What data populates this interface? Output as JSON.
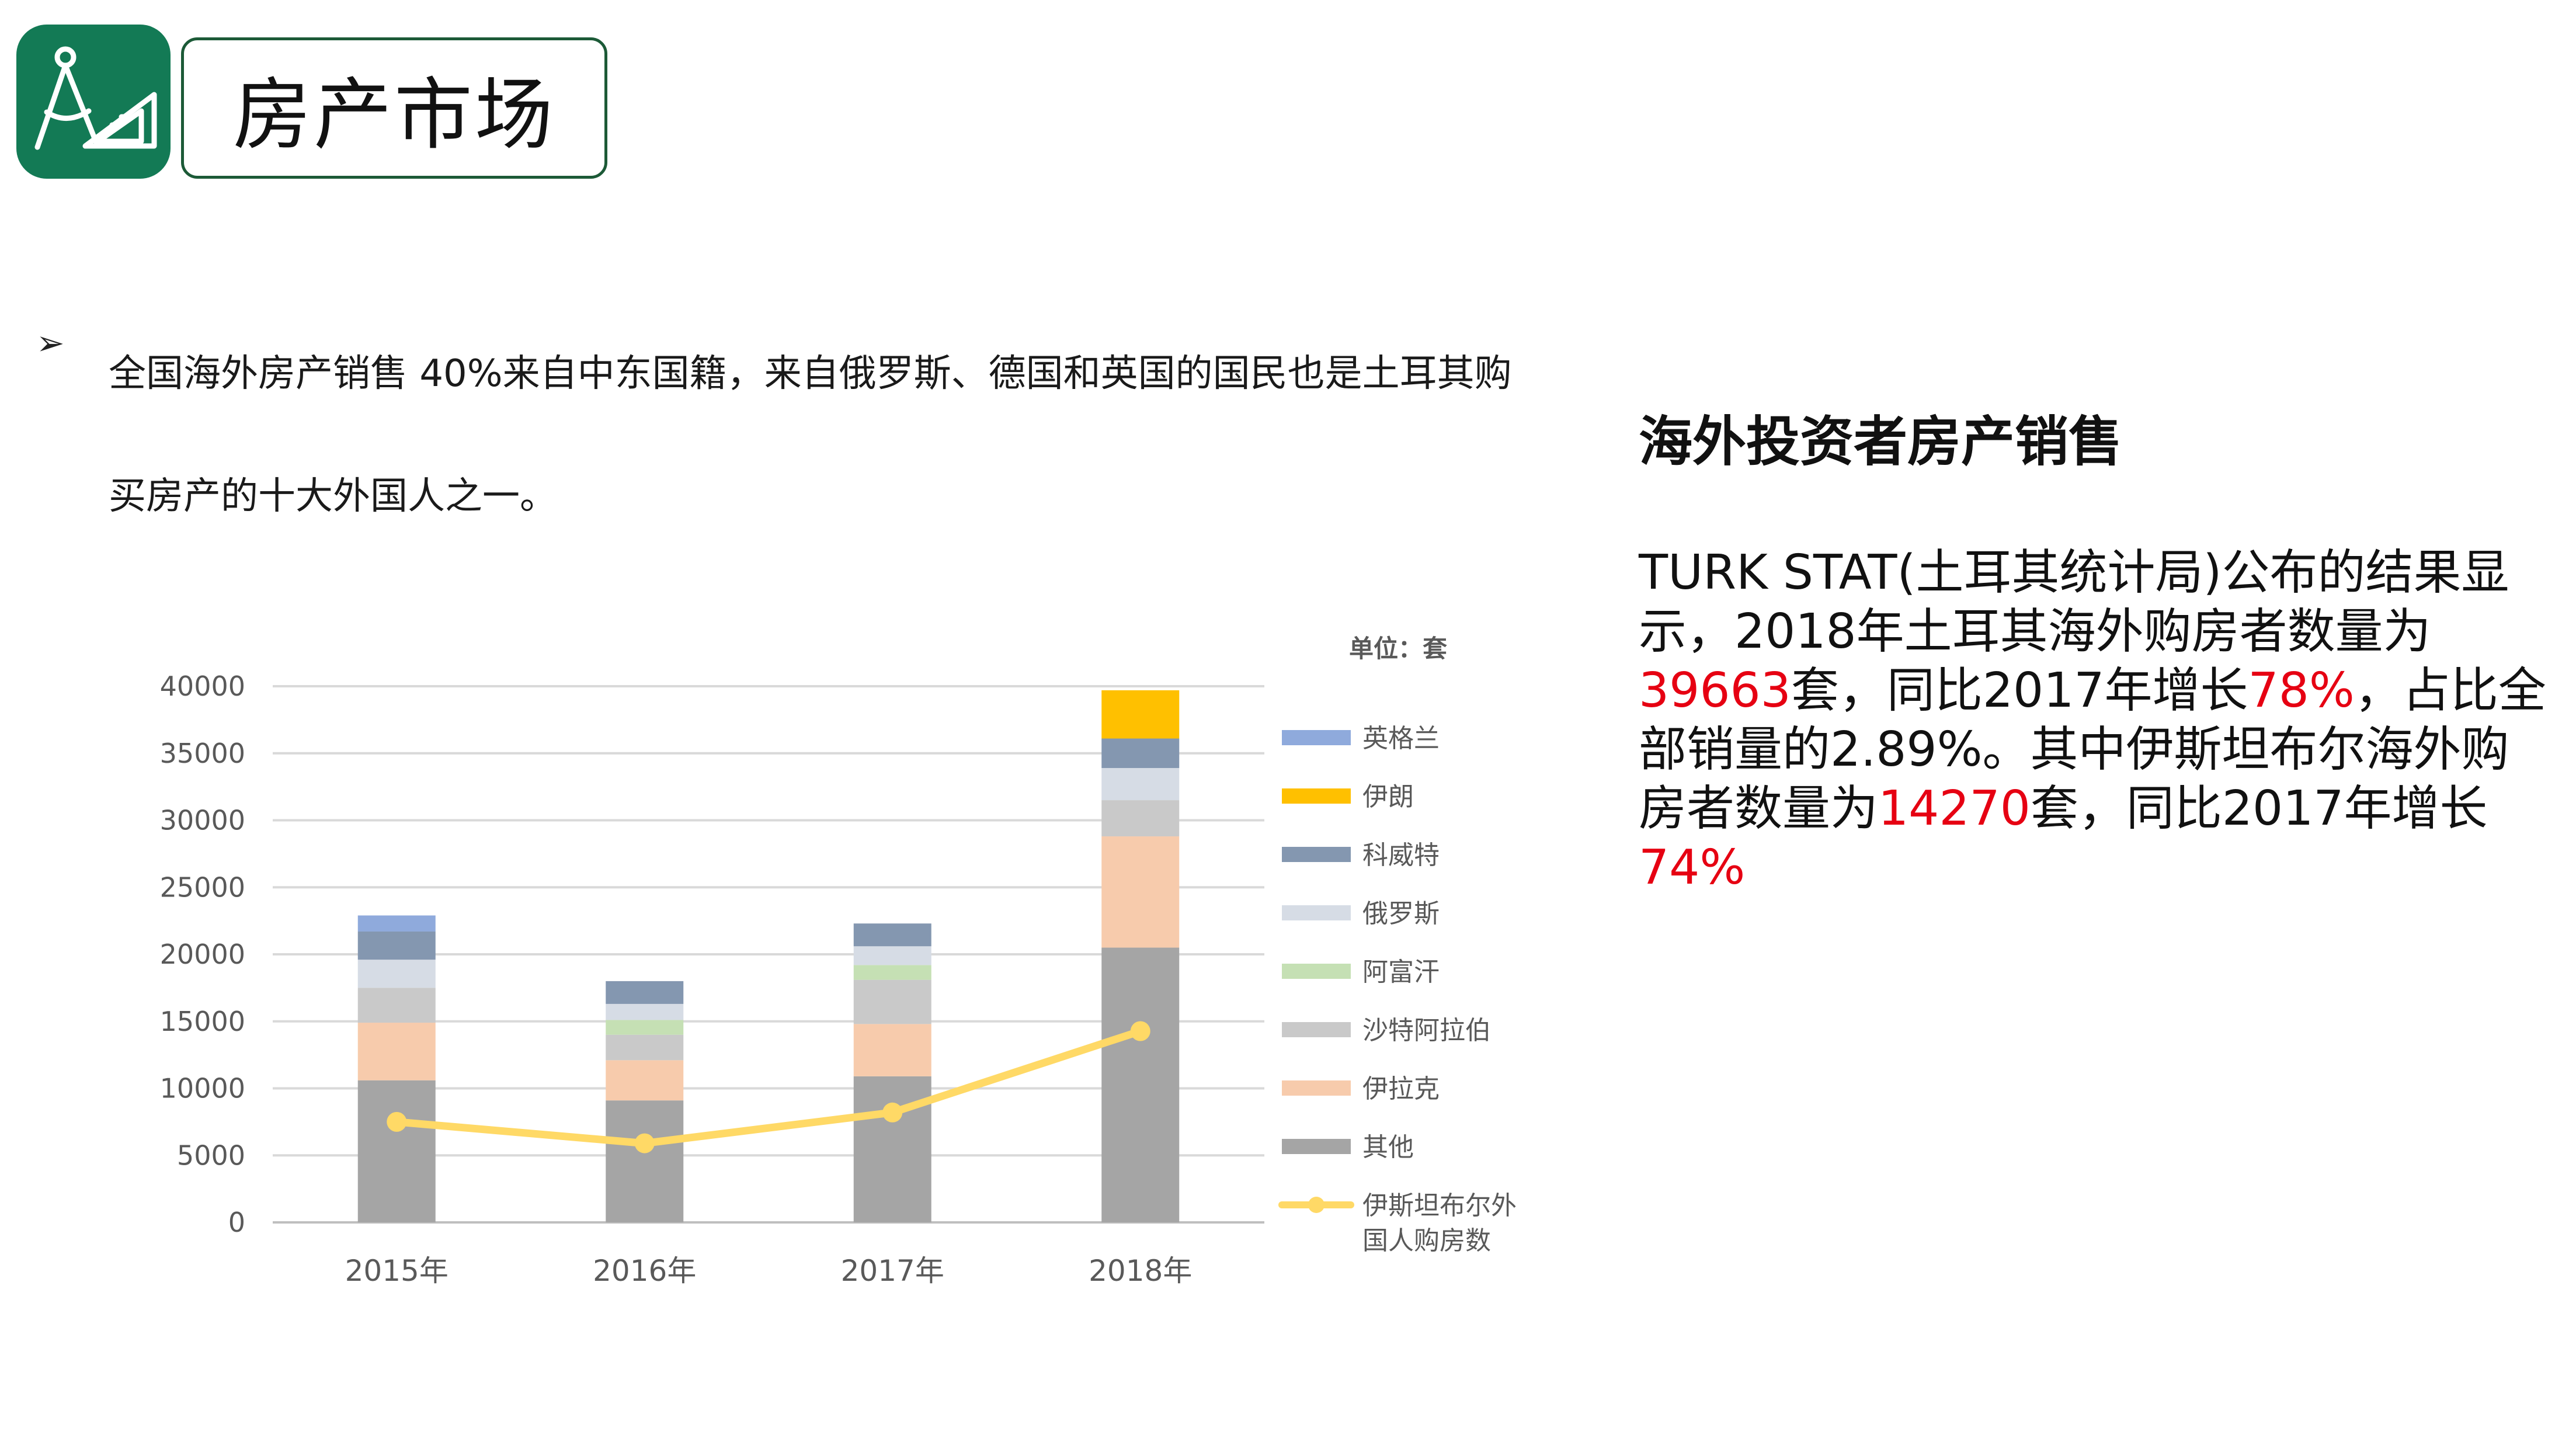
{
  "header": {
    "title": "房产市场",
    "logo_icon": "drafting-tools-icon"
  },
  "bullet": {
    "marker": "➢",
    "line1": "全国海外房产销售 40%来自中东国籍，来自俄罗斯、德国和英国的国民也是土耳其购",
    "line2": "买房产的十大外国人之一。"
  },
  "side": {
    "heading": "海外投资者房产销售",
    "p1": "TURK STAT(土耳其统计局)公布的结果显示，2018年土耳其海外购房者数量为",
    "v1": "39663",
    "p2": "套，同比2017年增长",
    "v2": "78%",
    "p3": "，占比全部销量的2.89%。其中伊斯坦布尔海外购房者数量为",
    "v3": "14270",
    "p4": "套，同比2017年增长",
    "v4": "74%",
    "highlight_color": "#e60012"
  },
  "chart_data": {
    "type": "bar",
    "stacked": true,
    "unit_label": "单位：套",
    "categories": [
      "2015年",
      "2016年",
      "2017年",
      "2018年"
    ],
    "ylim": [
      0,
      40000
    ],
    "yticks": [
      0,
      5000,
      10000,
      15000,
      20000,
      25000,
      30000,
      35000,
      40000
    ],
    "grid": true,
    "legend_position": "right",
    "series": [
      {
        "name": "其他",
        "color": "#a5a5a5",
        "values": [
          10600,
          9100,
          10900,
          20500
        ]
      },
      {
        "name": "伊拉克",
        "color": "#f7cbac",
        "values": [
          4300,
          3000,
          3900,
          8300
        ]
      },
      {
        "name": "沙特阿拉伯",
        "color": "#c9c9c9",
        "values": [
          2600,
          1900,
          3300,
          2700
        ]
      },
      {
        "name": "阿富汗",
        "color": "#c5e0b4",
        "values": [
          0,
          1100,
          1100,
          0
        ]
      },
      {
        "name": "俄罗斯",
        "color": "#d6dce5",
        "values": [
          2100,
          1200,
          1400,
          2400
        ]
      },
      {
        "name": "科威特",
        "color": "#8497b0",
        "values": [
          2100,
          1700,
          1700,
          2200
        ]
      },
      {
        "name": "伊朗",
        "color": "#ffc000",
        "values": [
          0,
          0,
          0,
          3600
        ]
      },
      {
        "name": "英格兰",
        "color": "#8faadc",
        "values": [
          1200,
          0,
          0,
          0
        ]
      }
    ],
    "line_series": {
      "name": "伊斯坦布尔外国人购房数",
      "name_line1": "伊斯坦布尔外",
      "name_line2": "国人购房数",
      "color": "#ffd966",
      "values": [
        7500,
        5900,
        8200,
        14270
      ]
    }
  }
}
